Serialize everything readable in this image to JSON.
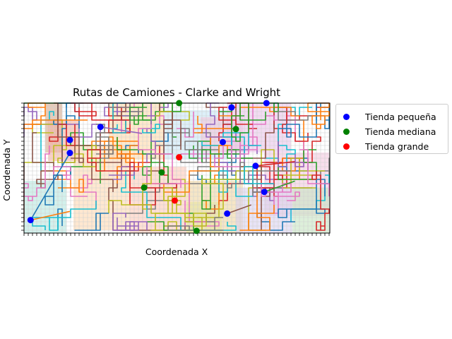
{
  "chart_data": {
    "type": "scatter",
    "title": "Rutas de Camiones - Clarke and Wright",
    "xlabel": "Coordenada X",
    "ylabel": "Coordenada Y",
    "grid": true,
    "legend_placement": "outside-right",
    "xlim": [
      0,
      70
    ],
    "ylim": [
      0,
      30
    ],
    "series": [
      {
        "name": "Tienda pequeña",
        "color": "#0000ff",
        "points": [
          [
            1.5,
            3.0
          ],
          [
            10.5,
            21.5
          ],
          [
            10.5,
            18.5
          ],
          [
            17.5,
            24.5
          ],
          [
            47.5,
            29.0
          ],
          [
            55.5,
            30.0
          ],
          [
            45.5,
            21.0
          ],
          [
            53.0,
            15.5
          ],
          [
            55.0,
            9.5
          ],
          [
            46.5,
            4.5
          ]
        ]
      },
      {
        "name": "Tienda mediana",
        "color": "#008000",
        "points": [
          [
            35.5,
            30.0
          ],
          [
            27.5,
            10.5
          ],
          [
            31.5,
            14.0
          ],
          [
            48.5,
            24.0
          ],
          [
            39.5,
            0.5
          ]
        ]
      },
      {
        "name": "Tienda grande",
        "color": "#ff0000",
        "points": [
          [
            35.5,
            17.5
          ],
          [
            34.5,
            7.5
          ]
        ]
      }
    ],
    "route_colors": [
      "#1f77b4",
      "#ff7f0e",
      "#2ca02c",
      "#d62728",
      "#9467bd",
      "#8c564b",
      "#e377c2",
      "#7f7f7f",
      "#bcbd22",
      "#17becf"
    ]
  }
}
